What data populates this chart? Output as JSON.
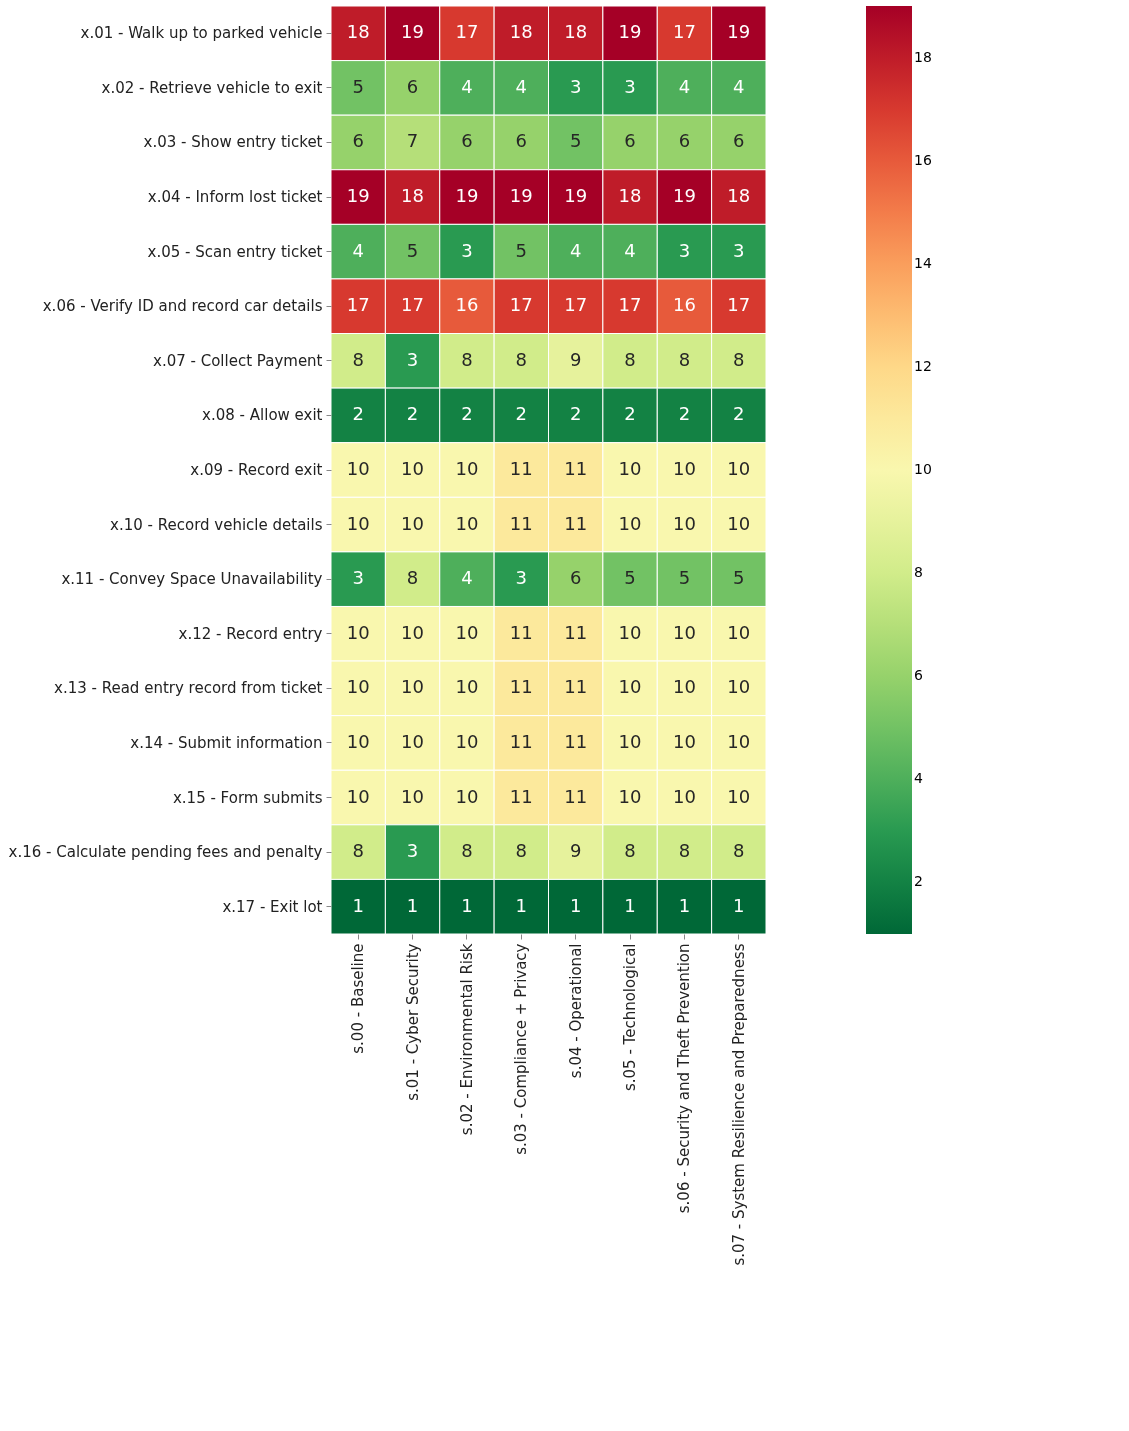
{
  "chart_data": {
    "type": "heatmap",
    "categories": [
      "s.00 - Baseline",
      "s.01 - Cyber Security",
      "s.02 - Environmental Risk",
      "s.03 - Compliance + Privacy",
      "s.04 - Operational",
      "s.05 - Technological",
      "s.06 - Security and Theft Prevention",
      "s.07 - System Resilience and Preparedness"
    ],
    "y_categories": [
      "x.01 - Walk up to parked vehicle",
      "x.02 - Retrieve vehicle to exit",
      "x.03 - Show entry ticket",
      "x.04 - Inform lost ticket",
      "x.05 - Scan entry ticket",
      "x.06 - Verify ID and record car details",
      "x.07 - Collect Payment",
      "x.08 - Allow exit",
      "x.09 - Record exit",
      "x.10 - Record vehicle details",
      "x.11 - Convey Space Unavailability",
      "x.12 - Record entry",
      "x.13 - Read entry record from ticket",
      "x.14 - Submit information",
      "x.15 - Form submits",
      "x.16 - Calculate pending fees and penalty",
      "x.17 - Exit lot"
    ],
    "cells": [
      [
        18,
        19,
        17,
        18,
        18,
        19,
        17,
        19
      ],
      [
        5,
        6,
        4,
        4,
        3,
        3,
        4,
        4
      ],
      [
        6,
        7,
        6,
        6,
        5,
        6,
        6,
        6
      ],
      [
        19,
        18,
        19,
        19,
        19,
        18,
        19,
        18
      ],
      [
        4,
        5,
        3,
        5,
        4,
        4,
        3,
        3
      ],
      [
        17,
        17,
        16,
        17,
        17,
        17,
        16,
        17
      ],
      [
        8,
        3,
        8,
        8,
        9,
        8,
        8,
        8
      ],
      [
        2,
        2,
        2,
        2,
        2,
        2,
        2,
        2
      ],
      [
        10,
        10,
        10,
        11,
        11,
        10,
        10,
        10
      ],
      [
        10,
        10,
        10,
        11,
        11,
        10,
        10,
        10
      ],
      [
        3,
        8,
        4,
        3,
        6,
        5,
        5,
        5
      ],
      [
        10,
        10,
        10,
        11,
        11,
        10,
        10,
        10
      ],
      [
        10,
        10,
        10,
        11,
        11,
        10,
        10,
        10
      ],
      [
        10,
        10,
        10,
        11,
        11,
        10,
        10,
        10
      ],
      [
        10,
        10,
        10,
        11,
        11,
        10,
        10,
        10
      ],
      [
        8,
        3,
        8,
        8,
        9,
        8,
        8,
        8
      ],
      [
        1,
        1,
        1,
        1,
        1,
        1,
        1,
        1
      ]
    ],
    "data_labels": true,
    "clim": [
      1,
      19
    ],
    "cticks": [
      2,
      4,
      6,
      8,
      10,
      12,
      14,
      16,
      18
    ]
  }
}
